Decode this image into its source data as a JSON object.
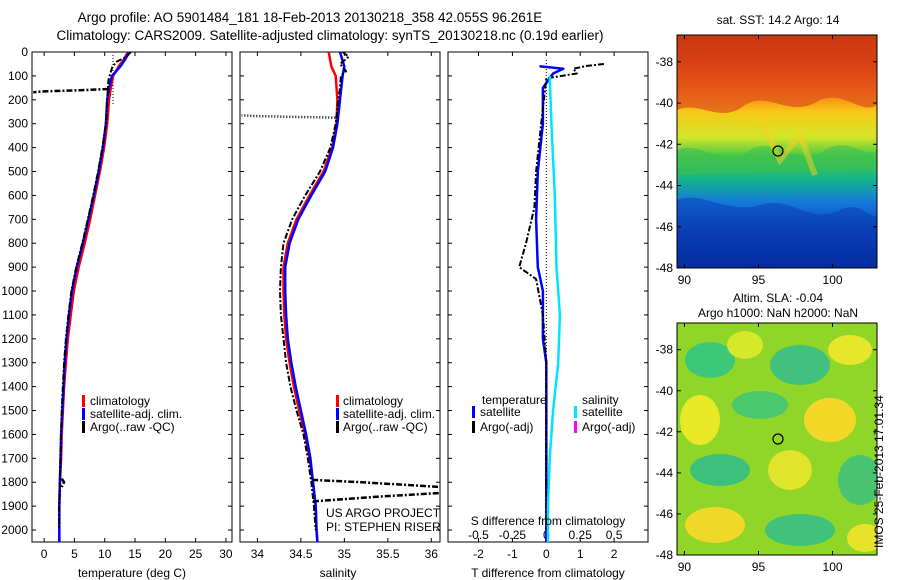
{
  "header": {
    "title_line1": "Argo profile: AO 5901484_181 18-Feb-2013 20130218_358 42.055S 96.261E",
    "title_line2": "Climatology: CARS2009. Satellite-adjusted climatology: synTS_20130218.nc (0.19d earlier)"
  },
  "depth_ticks": [
    "0",
    "100",
    "200",
    "300",
    "400",
    "500",
    "600",
    "700",
    "800",
    "900",
    "1000",
    "1100",
    "1200",
    "1300",
    "1400",
    "1500",
    "1600",
    "1700",
    "1800",
    "1900",
    "2000"
  ],
  "colors": {
    "climatology": "#ff0000",
    "satellite": "#0000ff",
    "argo": "#000000",
    "sal_satellite": "#00e5ff",
    "sal_argo": "#ff00ff"
  },
  "chart_data": [
    {
      "id": "temperature",
      "type": "line",
      "xlabel": "temperature (deg C)",
      "xlim": [
        -2,
        31
      ],
      "ylim": [
        2050,
        0
      ],
      "xticks": [
        "0",
        "5",
        "10",
        "15",
        "20",
        "25",
        "30"
      ],
      "legend": {
        "position": "lower-right",
        "entries": [
          "climatology",
          "satellite-adj. clim.",
          "Argo(..raw -QC)"
        ]
      },
      "series": [
        {
          "name": "climatology",
          "points": [
            [
              13.8,
              0
            ],
            [
              13.2,
              30
            ],
            [
              12.3,
              60
            ],
            [
              11.4,
              100
            ],
            [
              11.0,
              150
            ],
            [
              10.7,
              200
            ],
            [
              10.4,
              300
            ],
            [
              9.9,
              400
            ],
            [
              9.2,
              500
            ],
            [
              8.4,
              600
            ],
            [
              7.6,
              700
            ],
            [
              6.7,
              800
            ],
            [
              5.7,
              900
            ],
            [
              4.9,
              1000
            ],
            [
              4.4,
              1100
            ],
            [
              3.9,
              1200
            ],
            [
              3.6,
              1300
            ],
            [
              3.3,
              1400
            ],
            [
              3.1,
              1500
            ],
            [
              2.9,
              1600
            ],
            [
              2.8,
              1700
            ],
            [
              2.6,
              1800
            ],
            [
              2.5,
              1900
            ],
            [
              2.5,
              2000
            ],
            [
              2.5,
              2050
            ]
          ]
        },
        {
          "name": "satellite-adj. clim.",
          "points": [
            [
              14.0,
              0
            ],
            [
              13.4,
              30
            ],
            [
              12.6,
              60
            ],
            [
              11.2,
              100
            ],
            [
              10.7,
              150
            ],
            [
              10.4,
              200
            ],
            [
              10.2,
              300
            ],
            [
              9.7,
              400
            ],
            [
              9.0,
              500
            ],
            [
              8.2,
              600
            ],
            [
              7.3,
              700
            ],
            [
              6.4,
              800
            ],
            [
              5.4,
              900
            ],
            [
              4.6,
              1000
            ],
            [
              4.1,
              1100
            ],
            [
              3.7,
              1200
            ],
            [
              3.4,
              1300
            ],
            [
              3.2,
              1400
            ],
            [
              3.0,
              1500
            ],
            [
              2.8,
              1600
            ],
            [
              2.7,
              1700
            ],
            [
              2.6,
              1800
            ],
            [
              2.5,
              1900
            ],
            [
              2.5,
              2000
            ],
            [
              2.5,
              2050
            ]
          ]
        },
        {
          "name": "Argo(..raw -QC)",
          "points": [
            [
              14.3,
              0
            ],
            [
              13.6,
              20
            ],
            [
              12.0,
              40
            ],
            [
              11.3,
              60
            ],
            [
              10.9,
              90
            ],
            [
              10.6,
              120
            ],
            [
              10.5,
              160
            ],
            [
              10.4,
              200
            ],
            [
              10.2,
              300
            ],
            [
              9.6,
              400
            ],
            [
              8.9,
              500
            ],
            [
              8.1,
              600
            ],
            [
              7.2,
              700
            ],
            [
              6.3,
              800
            ],
            [
              5.3,
              900
            ],
            [
              4.5,
              1000
            ],
            [
              4.0,
              1100
            ],
            [
              3.6,
              1200
            ],
            [
              3.3,
              1300
            ],
            [
              3.1,
              1400
            ],
            [
              2.9,
              1500
            ],
            [
              2.8,
              1600
            ],
            [
              2.7,
              1700
            ],
            [
              2.6,
              1800
            ],
            [
              2.5,
              1900
            ],
            [
              2.5,
              2000
            ]
          ]
        },
        {
          "name": "spike",
          "points": [
            [
              10.6,
              155
            ],
            [
              6.0,
              160
            ],
            [
              0.0,
              165
            ],
            [
              -1.8,
              168
            ]
          ]
        },
        {
          "name": "spike2",
          "points": [
            [
              2.9,
              1785
            ],
            [
              3.3,
              1800
            ],
            [
              2.9,
              1820
            ]
          ]
        }
      ]
    },
    {
      "id": "salinity",
      "type": "line",
      "xlabel": "salinity",
      "xlim": [
        33.8,
        36.1
      ],
      "ylim": [
        2050,
        0
      ],
      "xticks": [
        "34",
        "34.5",
        "35",
        "35.5",
        "36"
      ],
      "legend": {
        "position": "lower-right",
        "entries": [
          "climatology",
          "satellite-adj. clim.",
          "Argo(..raw -QC)"
        ]
      },
      "annotations": [
        "US ARGO PROJECT",
        "PI: STEPHEN RISER"
      ],
      "series": [
        {
          "name": "climatology",
          "points": [
            [
              34.82,
              0
            ],
            [
              34.85,
              60
            ],
            [
              34.9,
              100
            ],
            [
              34.92,
              200
            ],
            [
              34.91,
              300
            ],
            [
              34.86,
              400
            ],
            [
              34.76,
              500
            ],
            [
              34.6,
              600
            ],
            [
              34.45,
              700
            ],
            [
              34.35,
              800
            ],
            [
              34.3,
              900
            ],
            [
              34.3,
              1000
            ],
            [
              34.31,
              1100
            ],
            [
              34.33,
              1200
            ],
            [
              34.37,
              1300
            ],
            [
              34.42,
              1400
            ],
            [
              34.48,
              1500
            ],
            [
              34.55,
              1600
            ],
            [
              34.6,
              1700
            ],
            [
              34.64,
              1800
            ],
            [
              34.67,
              1900
            ],
            [
              34.68,
              2000
            ],
            [
              34.69,
              2050
            ]
          ]
        },
        {
          "name": "satellite-adj. clim.",
          "points": [
            [
              34.95,
              0
            ],
            [
              35.0,
              60
            ],
            [
              34.98,
              100
            ],
            [
              34.95,
              200
            ],
            [
              34.92,
              300
            ],
            [
              34.87,
              400
            ],
            [
              34.78,
              500
            ],
            [
              34.62,
              600
            ],
            [
              34.47,
              700
            ],
            [
              34.37,
              800
            ],
            [
              34.32,
              900
            ],
            [
              34.32,
              1000
            ],
            [
              34.33,
              1100
            ],
            [
              34.35,
              1200
            ],
            [
              34.39,
              1300
            ],
            [
              34.44,
              1400
            ],
            [
              34.5,
              1500
            ],
            [
              34.56,
              1600
            ],
            [
              34.61,
              1700
            ],
            [
              34.64,
              1800
            ],
            [
              34.67,
              1900
            ],
            [
              34.68,
              2000
            ],
            [
              34.69,
              2050
            ]
          ]
        },
        {
          "name": "Argo(..raw -QC)",
          "points": [
            [
              34.98,
              0
            ],
            [
              35.05,
              20
            ],
            [
              34.95,
              50
            ],
            [
              35.02,
              80
            ],
            [
              34.96,
              100
            ],
            [
              34.95,
              150
            ],
            [
              34.93,
              200
            ],
            [
              34.9,
              300
            ],
            [
              34.84,
              400
            ],
            [
              34.72,
              500
            ],
            [
              34.55,
              600
            ],
            [
              34.4,
              700
            ],
            [
              34.3,
              800
            ],
            [
              34.27,
              900
            ],
            [
              34.26,
              1000
            ],
            [
              34.27,
              1100
            ],
            [
              34.3,
              1200
            ],
            [
              34.33,
              1300
            ],
            [
              34.38,
              1400
            ],
            [
              34.45,
              1500
            ],
            [
              34.53,
              1600
            ],
            [
              34.58,
              1700
            ],
            [
              34.62,
              1800
            ],
            [
              34.65,
              1900
            ],
            [
              34.67,
              2000
            ]
          ]
        },
        {
          "name": "spike-top",
          "points": [
            [
              34.93,
              275
            ],
            [
              34.5,
              272
            ],
            [
              34.0,
              268
            ],
            [
              33.82,
              265
            ]
          ]
        },
        {
          "name": "spike-bottom1",
          "points": [
            [
              34.63,
              1790
            ],
            [
              35.2,
              1800
            ],
            [
              36.1,
              1820
            ]
          ]
        },
        {
          "name": "spike-bottom2",
          "points": [
            [
              34.64,
              1880
            ],
            [
              35.4,
              1860
            ],
            [
              36.1,
              1845
            ]
          ]
        }
      ]
    },
    {
      "id": "differences",
      "type": "line",
      "xlabel": "T difference from climatology",
      "x2label": "S difference from climatology",
      "xlim": [
        -2.9,
        3.0
      ],
      "ylim": [
        2050,
        0
      ],
      "xticks": [
        "-2",
        "-1",
        "0",
        "1",
        "2"
      ],
      "x2ticks": [
        "-0.5",
        "-0.25",
        "0",
        "0.25",
        "0.5"
      ],
      "legend": {
        "position": "lower-center",
        "col1_title": "temperature",
        "col2_title": "salinity",
        "entries_col1": [
          "satellite",
          "Argo(-adj)"
        ],
        "entries_col2": [
          "satellite",
          "Argo(-adj)"
        ]
      },
      "series": [
        {
          "name": "T satellite",
          "points": [
            [
              -0.2,
              60
            ],
            [
              0.5,
              70
            ],
            [
              0.2,
              90
            ],
            [
              -0.1,
              150
            ],
            [
              -0.1,
              300
            ],
            [
              -0.25,
              500
            ],
            [
              -0.3,
              700
            ],
            [
              -0.25,
              900
            ],
            [
              -0.1,
              1000
            ],
            [
              -0.1,
              1200
            ],
            [
              0.0,
              1300
            ],
            [
              0.0,
              1500
            ],
            [
              0.0,
              1700
            ],
            [
              0.0,
              2050
            ]
          ]
        },
        {
          "name": "T Argo",
          "points": [
            [
              1.7,
              50
            ],
            [
              1.2,
              58
            ],
            [
              0.8,
              70
            ],
            [
              0.9,
              90
            ],
            [
              0.0,
              110
            ],
            [
              -0.15,
              300
            ],
            [
              -0.3,
              500
            ],
            [
              -0.35,
              650
            ],
            [
              -0.6,
              800
            ],
            [
              -0.8,
              900
            ],
            [
              -0.3,
              950
            ],
            [
              -0.1,
              1100
            ],
            [
              0.0,
              1300
            ],
            [
              0.0,
              1600
            ],
            [
              0.0,
              2000
            ]
          ]
        },
        {
          "name": "S satellite",
          "points": [
            [
              0.1,
              100
            ],
            [
              0.15,
              300
            ],
            [
              0.25,
              600
            ],
            [
              0.3,
              900
            ],
            [
              0.4,
              1100
            ],
            [
              0.35,
              1300
            ],
            [
              0.2,
              1500
            ],
            [
              0.1,
              1700
            ],
            [
              0.05,
              1900
            ],
            [
              0.05,
              2050
            ]
          ]
        }
      ]
    }
  ],
  "maps": {
    "sst": {
      "title": "sat. SST: 14.2 Argo: 14",
      "yticks": [
        "-38",
        "-40",
        "-42",
        "-44",
        "-46",
        "-48"
      ],
      "xticks": [
        "90",
        "95",
        "100"
      ]
    },
    "sla": {
      "title_line1": "Altim. SLA: -0.04",
      "title_line2": "Argo h1000: NaN h2000: NaN",
      "yticks": [
        "-38",
        "-40",
        "-42",
        "-44",
        "-46",
        "-48"
      ],
      "xticks": [
        "90",
        "95",
        "100"
      ]
    }
  },
  "stamp": "IMOS 25-Feb-2013 17:01:34"
}
